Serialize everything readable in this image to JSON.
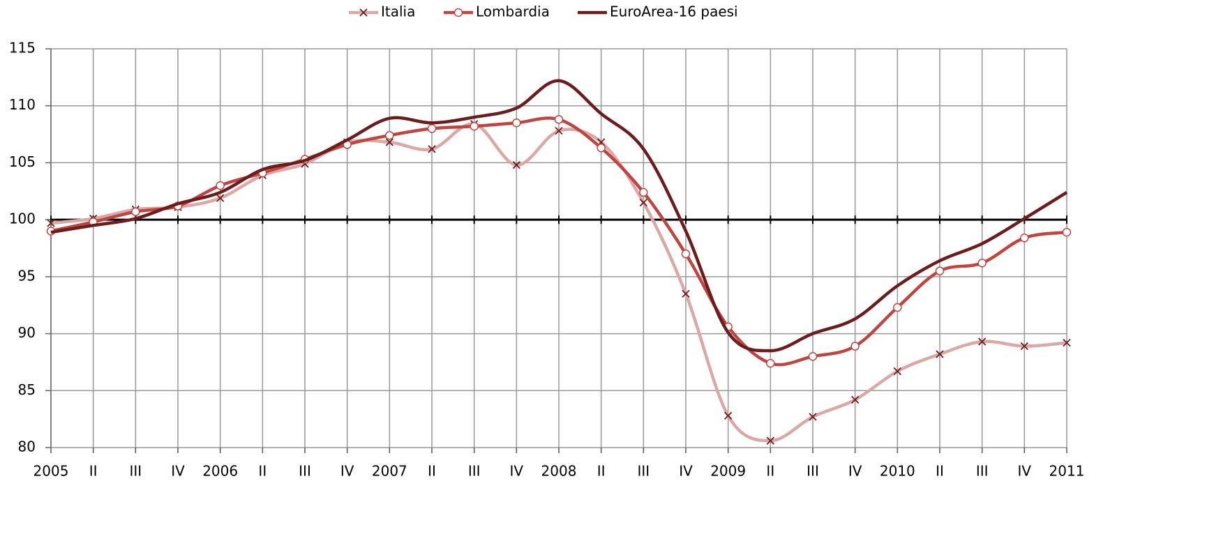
{
  "chart_data": {
    "type": "line",
    "categories": [
      "2005",
      "II",
      "III",
      "IV",
      "2006",
      "II",
      "III",
      "IV",
      "2007",
      "II",
      "III",
      "IV",
      "2008",
      "II",
      "III",
      "IV",
      "2009",
      "II",
      "III",
      "IV",
      "2010",
      "II",
      "III",
      "IV",
      "2011"
    ],
    "series": [
      {
        "name": "Italia",
        "color": "#dba8a8",
        "marker": "x",
        "marker_color": "#6b1a1a",
        "values": [
          99.7,
          100.1,
          100.9,
          101.1,
          101.9,
          103.9,
          104.9,
          106.8,
          106.8,
          106.2,
          108.4,
          104.8,
          107.8,
          106.8,
          101.5,
          93.5,
          82.8,
          80.6,
          82.7,
          84.2,
          86.7,
          88.2,
          89.3,
          88.9,
          89.2
        ]
      },
      {
        "name": "Lombardia",
        "color": "#c0443f",
        "marker": "circle",
        "marker_color": "#c0443f",
        "values": [
          99.0,
          99.8,
          100.7,
          101.2,
          103.0,
          104.1,
          105.3,
          106.6,
          107.4,
          108.0,
          108.2,
          108.5,
          108.8,
          106.3,
          102.4,
          97.0,
          90.6,
          87.4,
          88.0,
          88.9,
          92.3,
          95.5,
          96.2,
          98.4,
          98.9
        ]
      },
      {
        "name": "EuroArea-16 paesi",
        "color": "#6b1c1c",
        "marker": "none",
        "values": [
          98.9,
          99.5,
          100.1,
          101.4,
          102.4,
          104.4,
          105.2,
          107.0,
          108.9,
          108.5,
          109.0,
          109.8,
          112.2,
          109.3,
          106.2,
          99.0,
          90.1,
          88.5,
          90.0,
          91.3,
          94.2,
          96.4,
          97.9,
          100.1,
          102.4
        ]
      }
    ],
    "ylim": [
      80,
      115
    ],
    "yticks": [
      80,
      85,
      90,
      95,
      100,
      105,
      110,
      115
    ],
    "reference_line": 100,
    "grid": true,
    "legend": "top"
  }
}
